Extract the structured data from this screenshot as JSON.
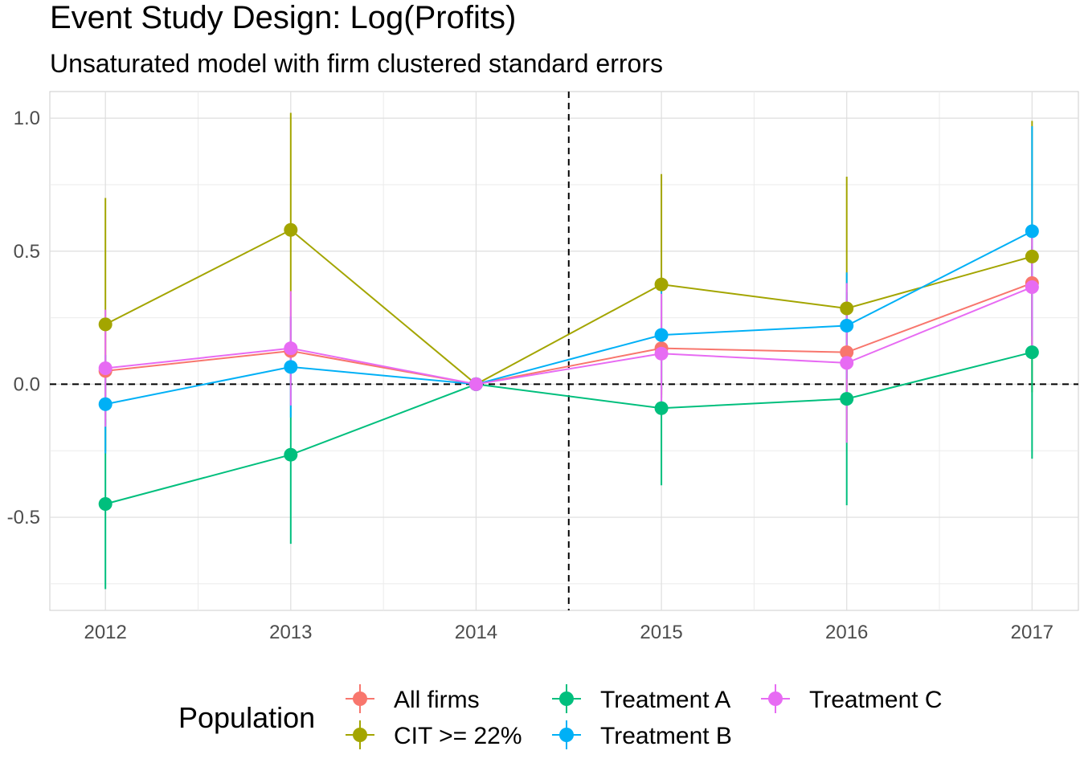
{
  "chart_data": {
    "type": "line",
    "title": "Event Study Design: Log(Profits)",
    "subtitle": "Unsaturated model with firm clustered standard errors",
    "xlabel": "",
    "ylabel": "",
    "x": [
      2012,
      2013,
      2014,
      2015,
      2016,
      2017
    ],
    "xlim": [
      2011.7,
      2017.25
    ],
    "ylim": [
      -0.85,
      1.1
    ],
    "y_ticks": [
      -0.5,
      0.0,
      0.5,
      1.0
    ],
    "y_tick_labels": [
      "-0.5",
      "0.0",
      "0.5",
      "1.0"
    ],
    "x_tick_labels": [
      "2012",
      "2013",
      "2014",
      "2015",
      "2016",
      "2017"
    ],
    "reference_lines": {
      "vertical": 2014.5,
      "horizontal": 0.0,
      "style": "dashed"
    },
    "grid": true,
    "legend": {
      "title": "Population",
      "position": "bottom",
      "order": [
        "All firms",
        "CIT >= 22%",
        "Treatment A",
        "Treatment B",
        "Treatment C"
      ]
    },
    "series": [
      {
        "name": "All firms",
        "color": "#F8766D",
        "values": [
          0.05,
          0.125,
          0.0,
          0.135,
          0.12,
          0.38
        ],
        "ci_low": [
          -0.15,
          0.0,
          0.0,
          -0.05,
          -0.05,
          0.15
        ],
        "ci_high": [
          0.25,
          0.25,
          0.0,
          0.32,
          0.3,
          0.6
        ]
      },
      {
        "name": "CIT >= 22%",
        "color": "#A3A500",
        "values": [
          0.225,
          0.58,
          0.0,
          0.375,
          0.285,
          0.48
        ],
        "ci_low": [
          -0.25,
          0.14,
          0.0,
          -0.04,
          -0.22,
          -0.03
        ],
        "ci_high": [
          0.7,
          1.02,
          0.0,
          0.79,
          0.78,
          0.99
        ]
      },
      {
        "name": "Treatment A",
        "color": "#00BF7D",
        "values": [
          -0.45,
          -0.265,
          0.0,
          -0.09,
          -0.055,
          0.12
        ],
        "ci_low": [
          -0.77,
          -0.6,
          0.0,
          -0.38,
          -0.455,
          -0.28
        ],
        "ci_high": [
          -0.13,
          0.07,
          0.0,
          0.2,
          0.345,
          0.52
        ]
      },
      {
        "name": "Treatment B",
        "color": "#00B0F6",
        "values": [
          -0.075,
          0.065,
          0.0,
          0.185,
          0.22,
          0.575
        ],
        "ci_low": [
          -0.26,
          -0.125,
          0.0,
          -0.02,
          0.02,
          0.18
        ],
        "ci_high": [
          0.11,
          0.255,
          0.0,
          0.39,
          0.42,
          0.97
        ]
      },
      {
        "name": "Treatment C",
        "color": "#E76BF3",
        "values": [
          0.06,
          0.135,
          0.0,
          0.115,
          0.08,
          0.365
        ],
        "ci_low": [
          -0.16,
          -0.08,
          0.0,
          -0.11,
          -0.22,
          0.13
        ],
        "ci_high": [
          0.28,
          0.35,
          0.0,
          0.34,
          0.38,
          0.6
        ]
      }
    ]
  }
}
